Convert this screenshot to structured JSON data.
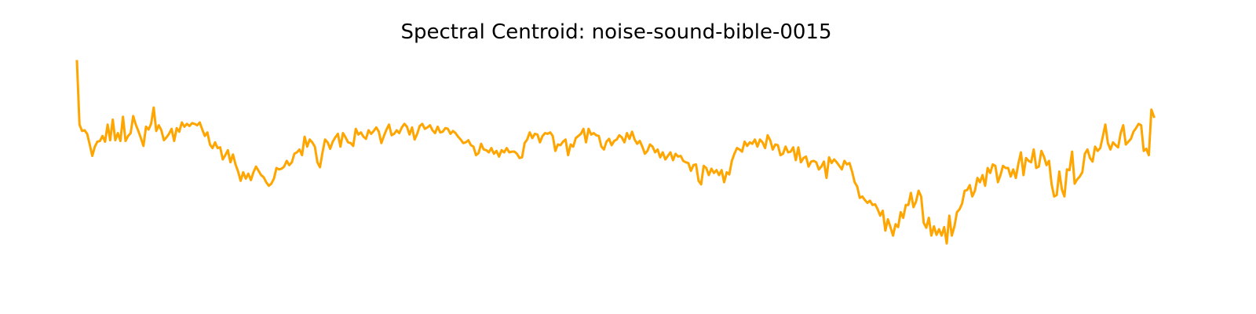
{
  "chart_data": {
    "type": "line",
    "title": "Spectral Centroid: noise-sound-bible-0015",
    "xlabel": "",
    "ylabel": "",
    "axes_visible": false,
    "grid": false,
    "ylim": [
      0,
      300
    ],
    "series": [
      {
        "color": "#FFA500",
        "values": [
          300,
          211,
          202,
          203,
          198,
          183,
          167,
          180,
          187,
          188,
          195,
          187,
          211,
          189,
          218,
          189,
          199,
          188,
          222,
          188,
          195,
          199,
          223,
          211,
          202,
          192,
          181,
          208,
          204,
          212,
          235,
          202,
          210,
          203,
          189,
          193,
          198,
          205,
          188,
          206,
          201,
          214,
          208,
          212,
          209,
          213,
          212,
          210,
          214,
          204,
          195,
          200,
          183,
          178,
          186,
          178,
          179,
          162,
          168,
          175,
          158,
          169,
          155,
          145,
          132,
          144,
          135,
          142,
          133,
          144,
          152,
          146,
          140,
          137,
          130,
          125,
          128,
          135,
          150,
          148,
          149,
          152,
          160,
          154,
          158,
          170,
          172,
          176,
          168,
          194,
          180,
          190,
          186,
          180,
          158,
          151,
          172,
          190,
          186,
          177,
          187,
          193,
          198,
          180,
          199,
          193,
          186,
          185,
          181,
          205,
          197,
          200,
          194,
          191,
          203,
          198,
          202,
          207,
          201,
          185,
          195,
          204,
          211,
          196,
          198,
          203,
          199,
          207,
          212,
          208,
          197,
          207,
          190,
          198,
          209,
          212,
          205,
          207,
          210,
          203,
          199,
          208,
          200,
          201,
          206,
          205,
          198,
          202,
          199,
          194,
          190,
          185,
          186,
          189,
          182,
          180,
          168,
          171,
          184,
          176,
          175,
          172,
          178,
          170,
          174,
          166,
          175,
          172,
          178,
          172,
          173,
          173,
          170,
          164,
          165,
          185,
          190,
          200,
          192,
          198,
          197,
          186,
          195,
          199,
          198,
          200,
          195,
          174,
          183,
          182,
          187,
          190,
          168,
          183,
          180,
          192,
          195,
          198,
          205,
          186,
          205,
          197,
          199,
          196,
          195,
          180,
          176,
          187,
          191,
          182,
          188,
          190,
          196,
          193,
          186,
          199,
          191,
          201,
          190,
          184,
          188,
          180,
          170,
          174,
          183,
          180,
          172,
          176,
          165,
          172,
          162,
          167,
          172,
          161,
          170,
          166,
          167,
          160,
          158,
          157,
          146,
          154,
          155,
          132,
          127,
          153,
          150,
          140,
          149,
          143,
          147,
          140,
          147,
          130,
          144,
          141,
          160,
          170,
          178,
          176,
          173,
          187,
          181,
          186,
          184,
          190,
          180,
          190,
          186,
          178,
          196,
          189,
          176,
          183,
          182,
          168,
          170,
          180,
          172,
          173,
          179,
          161,
          179,
          158,
          164,
          166,
          152,
          159,
          160,
          158,
          148,
          152,
          159,
          136,
          165,
          157,
          162,
          158,
          153,
          148,
          160,
          155,
          157,
          145,
          130,
          124,
          108,
          110,
          105,
          101,
          104,
          98,
          99,
          92,
          83,
          90,
          62,
          78,
          67,
          55,
          71,
          67,
          88,
          80,
          98,
          98,
          115,
          95,
          103,
          118,
          110,
          73,
          66,
          80,
          55,
          68,
          56,
          64,
          55,
          67,
          44,
          83,
          55,
          68,
          88,
          92,
          100,
          118,
          119,
          126,
          110,
          118,
          136,
          130,
          140,
          125,
          150,
          143,
          155,
          153,
          130,
          140,
          153,
          150,
          150,
          138,
          148,
          136,
          156,
          172,
          140,
          164,
          160,
          158,
          176,
          150,
          152,
          174,
          166,
          154,
          160,
          127,
          110,
          112,
          145,
          120,
          110,
          148,
          147,
          173,
          128,
          134,
          138,
          144,
          170,
          176,
          164,
          159,
          180,
          174,
          178,
          194,
          211,
          185,
          176,
          186,
          182,
          179,
          199,
          210,
          183,
          187,
          191,
          201,
          206,
          212,
          210,
          174,
          177,
          168,
          232,
          222
        ]
      }
    ]
  }
}
